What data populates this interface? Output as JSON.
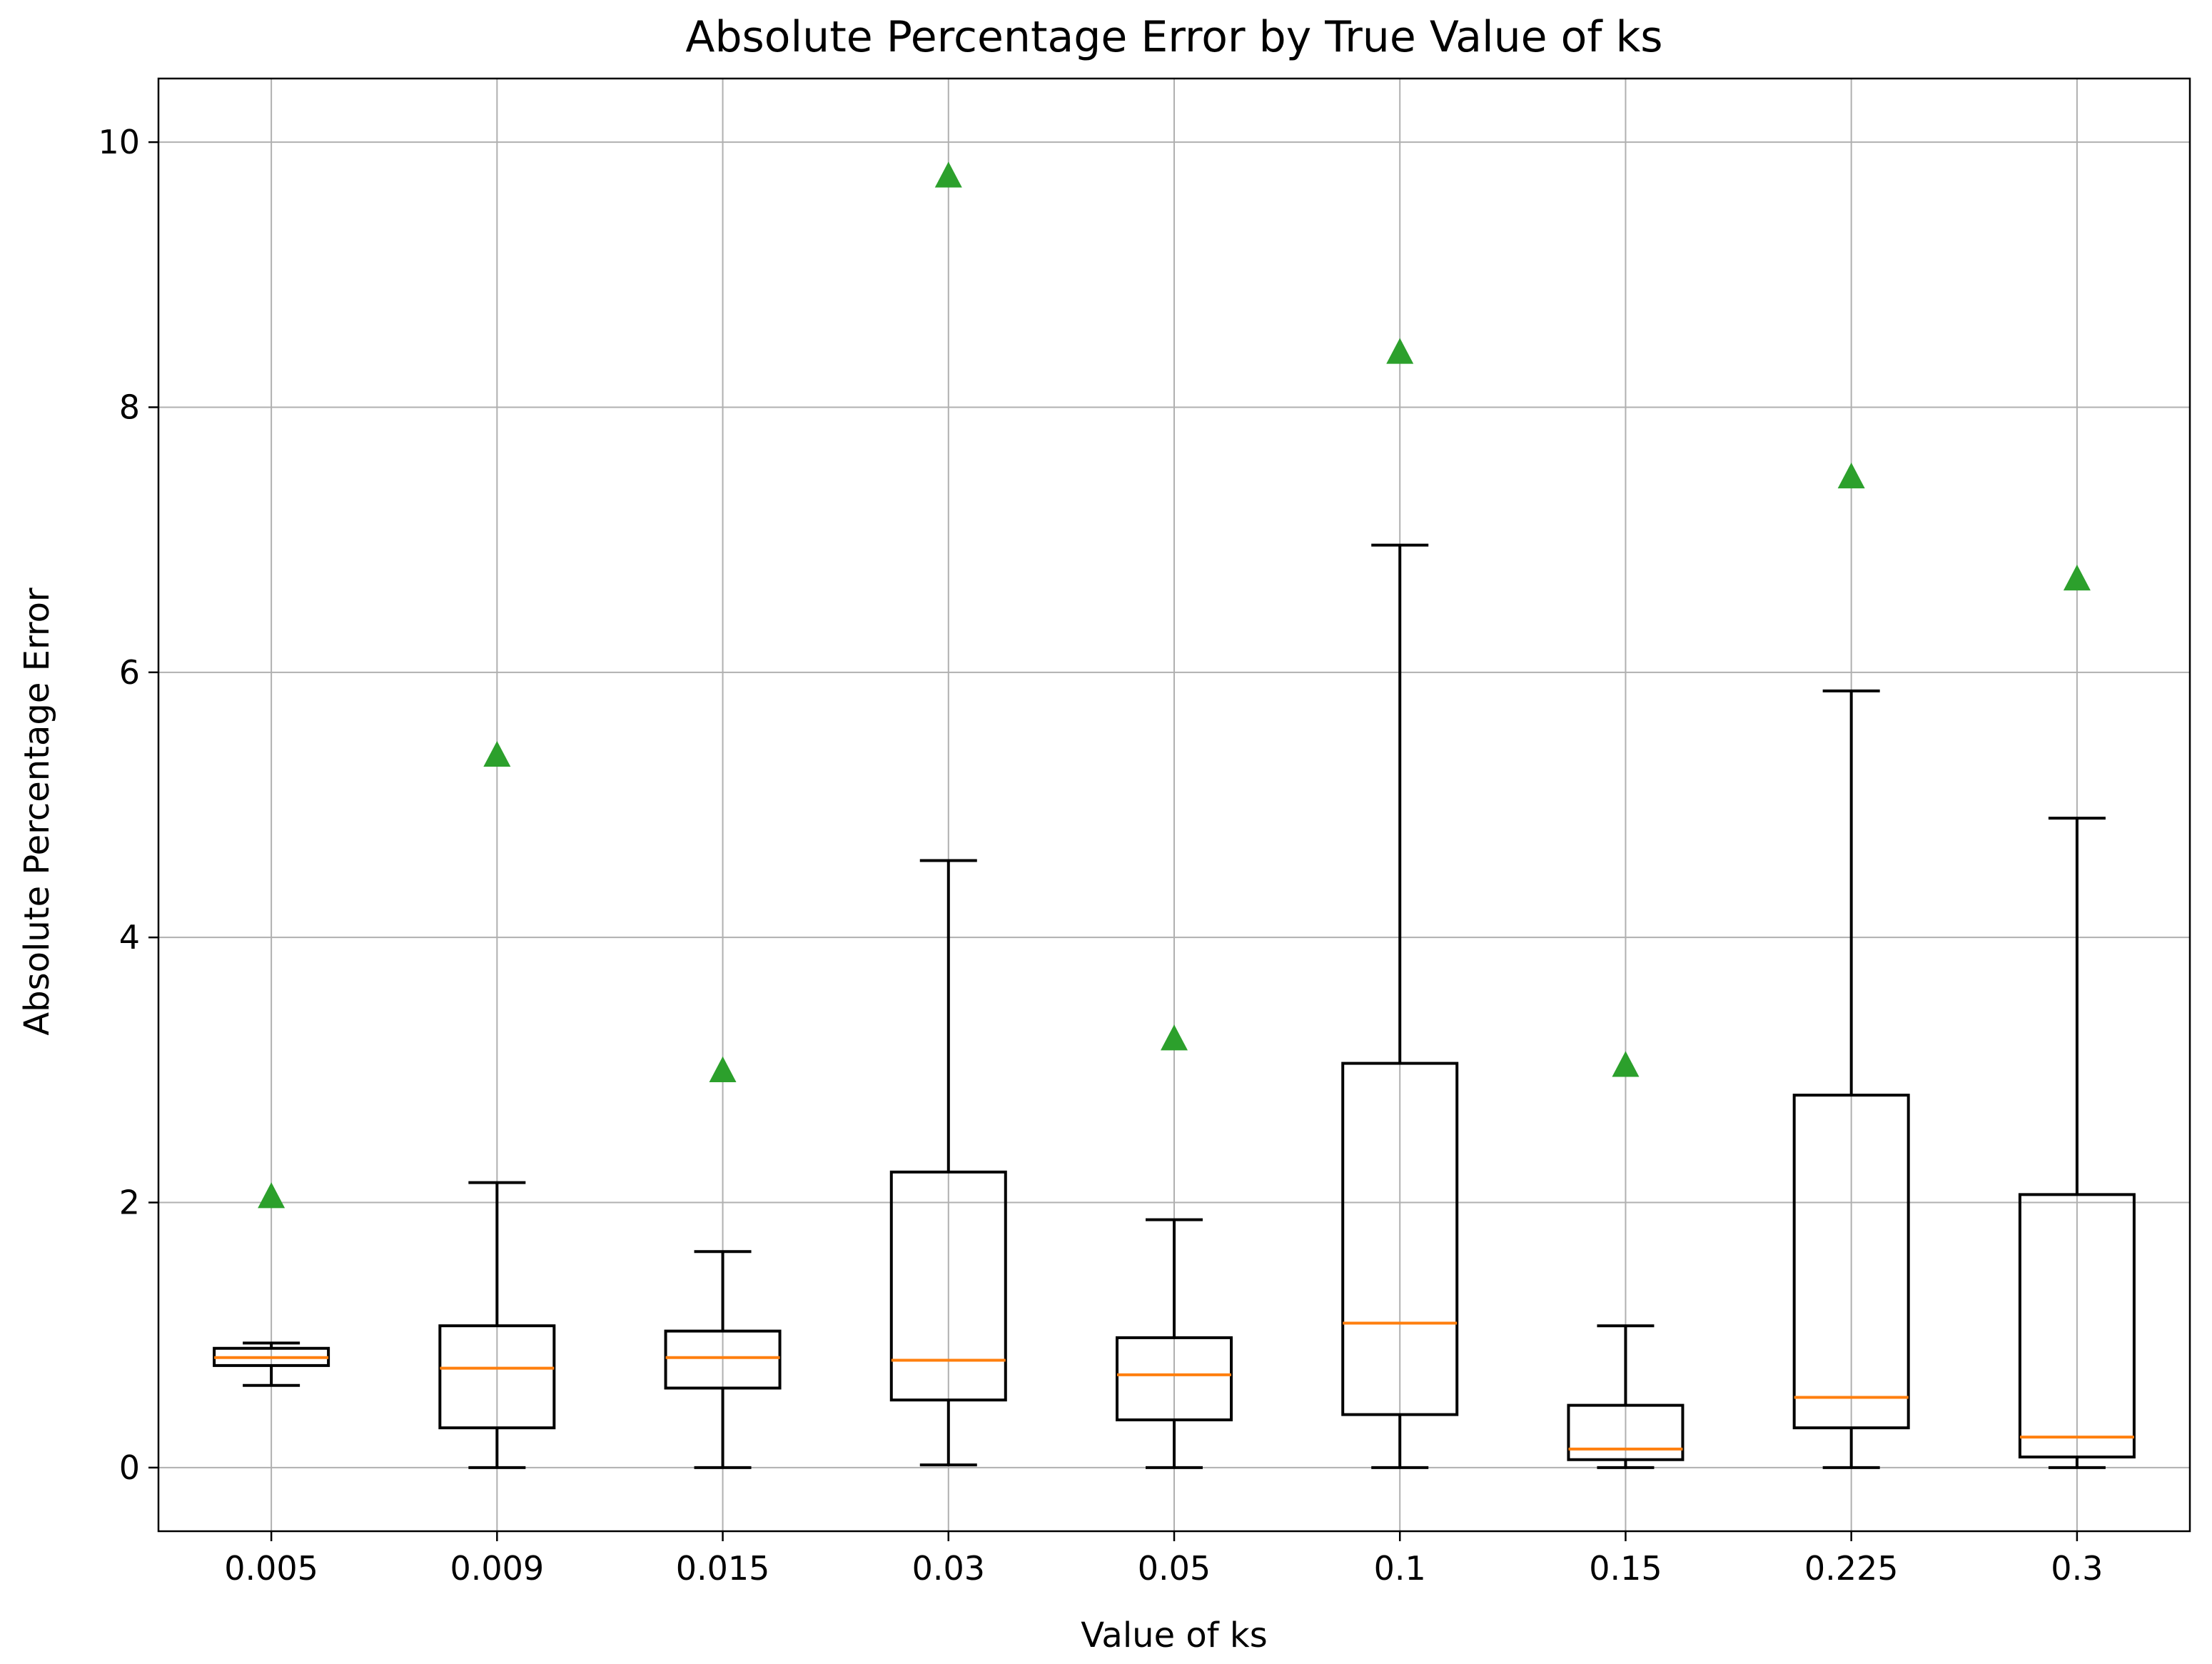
{
  "chart_data": {
    "type": "boxplot",
    "title": "Absolute Percentage Error by True Value of ks",
    "xlabel": "Value of ks",
    "ylabel": "Absolute Percentage Error",
    "ylim": [
      -0.48,
      10.48
    ],
    "yticks": [
      0,
      2,
      4,
      6,
      8,
      10
    ],
    "ytick_labels": [
      "0",
      "2",
      "4",
      "6",
      "8",
      "10"
    ],
    "grid": true,
    "categories": [
      "0.005",
      "0.009",
      "0.015",
      "0.03",
      "0.05",
      "0.1",
      "0.15",
      "0.225",
      "0.3"
    ],
    "boxes": [
      {
        "whisker_low": 0.62,
        "q1": 0.77,
        "median": 0.83,
        "q3": 0.9,
        "whisker_high": 0.94,
        "mean": 2.05
      },
      {
        "whisker_low": 0.0,
        "q1": 0.3,
        "median": 0.75,
        "q3": 1.07,
        "whisker_high": 2.15,
        "mean": 5.38
      },
      {
        "whisker_low": 0.0,
        "q1": 0.6,
        "median": 0.83,
        "q3": 1.03,
        "whisker_high": 1.63,
        "mean": 3.0
      },
      {
        "whisker_low": 0.02,
        "q1": 0.51,
        "median": 0.81,
        "q3": 2.23,
        "whisker_high": 4.58,
        "mean": 9.75
      },
      {
        "whisker_low": 0.0,
        "q1": 0.36,
        "median": 0.7,
        "q3": 0.98,
        "whisker_high": 1.87,
        "mean": 3.24
      },
      {
        "whisker_low": 0.0,
        "q1": 0.4,
        "median": 1.09,
        "q3": 3.05,
        "whisker_high": 6.96,
        "mean": 8.42
      },
      {
        "whisker_low": 0.0,
        "q1": 0.06,
        "median": 0.14,
        "q3": 0.47,
        "whisker_high": 1.07,
        "mean": 3.04
      },
      {
        "whisker_low": 0.0,
        "q1": 0.3,
        "median": 0.53,
        "q3": 2.81,
        "whisker_high": 5.86,
        "mean": 7.48
      },
      {
        "whisker_low": 0.0,
        "q1": 0.08,
        "median": 0.23,
        "q3": 2.06,
        "whisker_high": 4.9,
        "mean": 6.71
      }
    ],
    "colors": {
      "box": "#000000",
      "median": "#ff7f0e",
      "mean_marker": "#2ca02c",
      "grid": "#b0b0b0"
    }
  }
}
